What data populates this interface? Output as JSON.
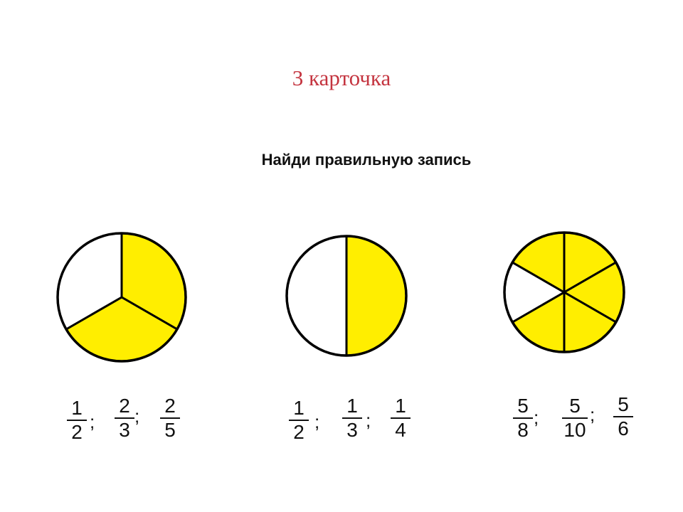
{
  "card_title": "3 карточка",
  "instruction": "Найди правильную запись",
  "fill_color": "#ffee00",
  "cards": [
    {
      "pie": {
        "parts": 3,
        "shaded": 2
      },
      "options": [
        {
          "num": "1",
          "den": "2",
          "sep": ";"
        },
        {
          "num": "2",
          "den": "3",
          "sep": ";"
        },
        {
          "num": "2",
          "den": "5",
          "sep": ""
        }
      ]
    },
    {
      "pie": {
        "parts": 2,
        "shaded": 1
      },
      "options": [
        {
          "num": "1",
          "den": "2",
          "sep": ";"
        },
        {
          "num": "1",
          "den": "3",
          "sep": ";"
        },
        {
          "num": "1",
          "den": "4",
          "sep": ""
        }
      ]
    },
    {
      "pie": {
        "parts": 6,
        "shaded": 5
      },
      "options": [
        {
          "num": "5",
          "den": "8",
          "sep": ";"
        },
        {
          "num": "5",
          "den": "10",
          "sep": ";"
        },
        {
          "num": "5",
          "den": "6",
          "sep": ""
        }
      ]
    }
  ]
}
